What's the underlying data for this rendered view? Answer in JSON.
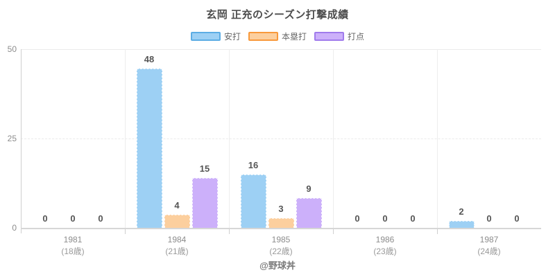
{
  "title": "玄岡 正充のシーズン打撃成績",
  "footer": "@野球丼",
  "colors": {
    "hits_fill": "#9dd0f4",
    "hits_border": "#5cade4",
    "homeruns_fill": "#fccf9e",
    "homeruns_border": "#f8993b",
    "rbi_fill": "#ccb0fa",
    "rbi_border": "#a07bec",
    "grid": "#eaeaea",
    "axis": "#cfcfcf",
    "value_label": "#555555",
    "tick_label": "#8c8c8c"
  },
  "chart_data": {
    "type": "bar",
    "title": "玄岡 正充のシーズン打撃成績",
    "categories": [
      "1981",
      "1984",
      "1985",
      "1986",
      "1987"
    ],
    "category_sub": [
      "(18歳)",
      "(21歳)",
      "(22歳)",
      "(23歳)",
      "(24歳)"
    ],
    "series": [
      {
        "key": "hits",
        "name": "安打",
        "values": [
          0,
          48,
          16,
          0,
          2
        ],
        "fill": "#9dd0f4",
        "border": "#5cade4"
      },
      {
        "key": "homeruns",
        "name": "本塁打",
        "values": [
          0,
          4,
          3,
          0,
          0
        ],
        "fill": "#fccf9e",
        "border": "#f8993b"
      },
      {
        "key": "rbi",
        "name": "打点",
        "values": [
          0,
          15,
          9,
          0,
          0
        ],
        "fill": "#ccb0fa",
        "border": "#a07bec"
      }
    ],
    "xlabel": "",
    "ylabel": "",
    "yticks": [
      0,
      25,
      50
    ],
    "ylim": [
      0,
      50
    ],
    "grid": true,
    "legend_position": "top",
    "value_labels_shown": true
  }
}
